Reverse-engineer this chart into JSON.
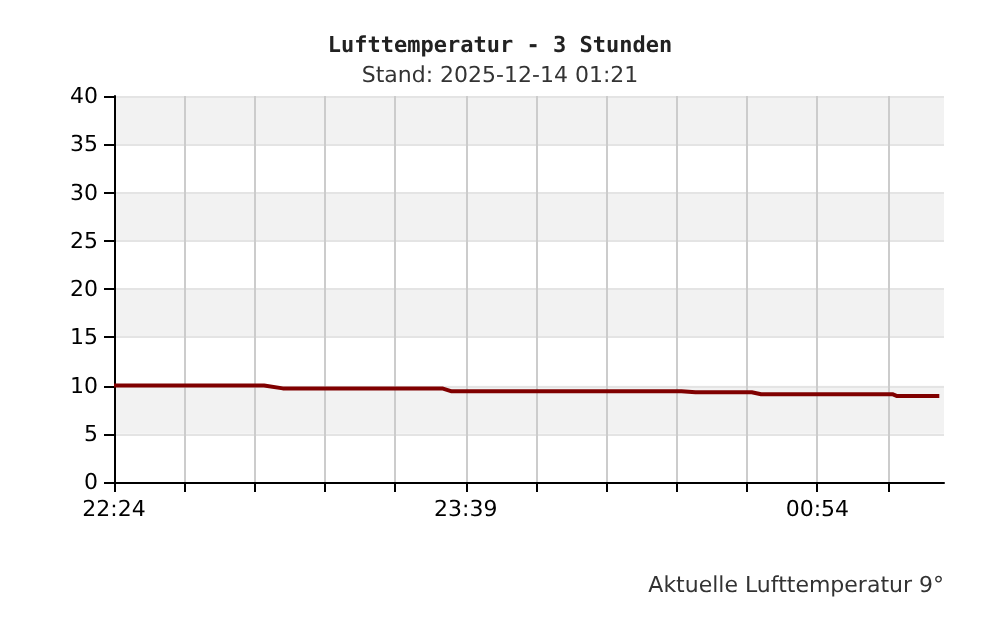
{
  "chart_data": {
    "type": "line",
    "title": "Lufttemperatur - 3 Stunden",
    "subtitle": "Stand: 2025-12-14 01:21",
    "annotations": [
      "Aktuelle Lufttemperatur 9°"
    ],
    "x": [
      "2025-12-13T22:24",
      "2025-12-13T22:56",
      "2025-12-13T23:00",
      "2025-12-13T23:34",
      "2025-12-13T23:36",
      "2025-12-14T00:25",
      "2025-12-14T00:28",
      "2025-12-14T00:40",
      "2025-12-14T00:42",
      "2025-12-14T01:10",
      "2025-12-14T01:11",
      "2025-12-14T01:20"
    ],
    "series": [
      {
        "color": "#800000",
        "values": [
          10.0,
          10.0,
          9.7,
          9.7,
          9.4,
          9.4,
          9.3,
          9.3,
          9.1,
          9.1,
          8.9,
          8.9
        ]
      }
    ],
    "xlim": [
      "2025-12-13T22:24",
      "2025-12-14T01:21"
    ],
    "xticks": [
      {
        "value": "2025-12-13T22:24",
        "label": "22:24"
      },
      {
        "value": "2025-12-13T22:39",
        "label": null
      },
      {
        "value": "2025-12-13T22:54",
        "label": null
      },
      {
        "value": "2025-12-13T23:09",
        "label": null
      },
      {
        "value": "2025-12-13T23:24",
        "label": null
      },
      {
        "value": "2025-12-13T23:39",
        "label": "23:39"
      },
      {
        "value": "2025-12-13T23:54",
        "label": null
      },
      {
        "value": "2025-12-14T00:09",
        "label": null
      },
      {
        "value": "2025-12-14T00:24",
        "label": null
      },
      {
        "value": "2025-12-14T00:39",
        "label": null
      },
      {
        "value": "2025-12-14T00:54",
        "label": "00:54"
      },
      {
        "value": "2025-12-14T01:09",
        "label": null
      }
    ],
    "ylim": [
      0,
      40
    ],
    "yticks": [
      0,
      5,
      10,
      15,
      20,
      25,
      30,
      35,
      40
    ],
    "grid": true,
    "marker": "none",
    "line_style": "solid"
  }
}
